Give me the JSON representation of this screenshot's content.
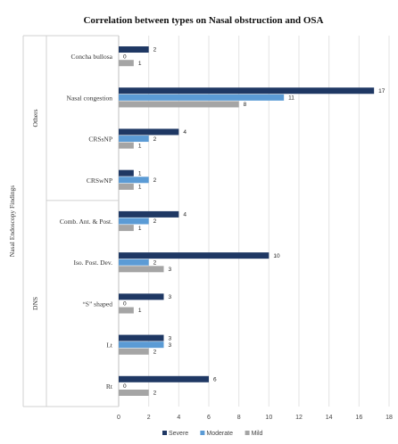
{
  "chart_data": {
    "type": "bar",
    "orientation": "horizontal",
    "title": "Correlation between types on Nasal obstruction and OSA",
    "outer_group_label": "Nasal Endoscopy Findings",
    "groups": [
      {
        "label": "Others",
        "categories": [
          "Concha bullosa",
          "Nasal congestion",
          "CRSsNP",
          "CRSwNP"
        ]
      },
      {
        "label": "DNS",
        "categories": [
          "Comb. Ant. & Post.",
          "Iso. Post. Dev.",
          "“S” shaped",
          "Lt",
          "Rt"
        ]
      }
    ],
    "categories": [
      "Concha bullosa",
      "Nasal congestion",
      "CRSsNP",
      "CRSwNP",
      "Comb. Ant. & Post.",
      "Iso. Post. Dev.",
      "“S” shaped",
      "Lt",
      "Rt"
    ],
    "series": [
      {
        "name": "Severe",
        "color": "#1f3864",
        "values": [
          2,
          17,
          4,
          1,
          4,
          10,
          3,
          3,
          6
        ]
      },
      {
        "name": "Moderate",
        "color": "#5b9bd5",
        "values": [
          0,
          11,
          2,
          2,
          2,
          2,
          0,
          3,
          0
        ]
      },
      {
        "name": "Mild",
        "color": "#a5a5a5",
        "values": [
          1,
          8,
          1,
          1,
          1,
          3,
          1,
          2,
          2
        ]
      }
    ],
    "xlim": [
      0,
      18
    ],
    "xticks": [
      0,
      2,
      4,
      6,
      8,
      10,
      12,
      14,
      16,
      18
    ],
    "grid": true,
    "legend_position": "bottom"
  }
}
